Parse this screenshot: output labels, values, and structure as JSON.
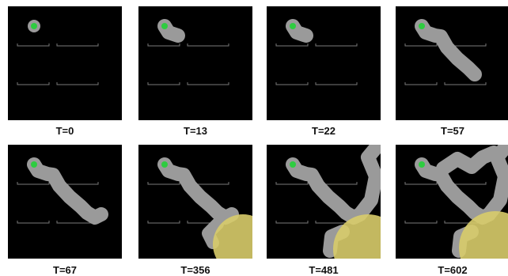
{
  "panels": [
    {
      "label": "T=0"
    },
    {
      "label": "T=13"
    },
    {
      "label": "T=22"
    },
    {
      "label": "T=57"
    },
    {
      "label": "T=67"
    },
    {
      "label": "T=356"
    },
    {
      "label": "T=481"
    },
    {
      "label": "T=602"
    }
  ],
  "colors": {
    "background": "#000000",
    "explored": "#9a9a9a",
    "start_marker": "#2ecc40",
    "frontier": "#d8cc6a",
    "walls": "#7a7a7a"
  }
}
